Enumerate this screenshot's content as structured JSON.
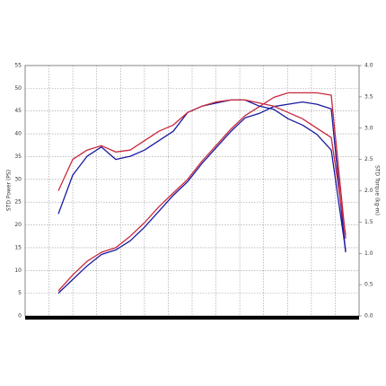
{
  "chart_data": {
    "type": "line",
    "y_label": "STD Power (PS)",
    "y2_label": "STD Torque (kg-m)",
    "categories": [
      null,
      null,
      null,
      null,
      null,
      null,
      null,
      null,
      null,
      null,
      null,
      null,
      null,
      null,
      null,
      null,
      null,
      null,
      null,
      null,
      null
    ],
    "ylim": [
      0,
      55
    ],
    "yticks": [
      0,
      5,
      10,
      15,
      20,
      25,
      30,
      35,
      40,
      45,
      50,
      55
    ],
    "y2lim": [
      0,
      4
    ],
    "y2ticks": [
      {
        "value": 0,
        "label": "0.0"
      },
      0.5,
      {
        "value": 1,
        "label": "1.0"
      },
      1.5,
      {
        "value": 2,
        "label": "2.0"
      },
      2.5,
      {
        "value": 3,
        "label": "3.0"
      },
      3.5,
      {
        "value": 4,
        "label": "4.0"
      }
    ],
    "grid": true,
    "series": [
      {
        "color": "#1a1aa0",
        "values": [
          5,
          8,
          11,
          13.5,
          14.5,
          16.5,
          19.5,
          23,
          26.5,
          29.5,
          33.5,
          37,
          40.5,
          43.5,
          44.5,
          46,
          46.5,
          47,
          46.5,
          45.5,
          14
        ]
      },
      {
        "color": "#c8283c",
        "values": [
          5.5,
          9,
          12,
          14,
          15,
          17.5,
          20.5,
          24,
          27,
          30,
          34,
          37.5,
          41,
          44,
          46,
          48,
          49,
          49,
          49,
          48.5,
          17
        ]
      },
      {
        "color": "#1a1aa0",
        "axis": "y2",
        "values": [
          1.63,
          2.25,
          2.55,
          2.7,
          2.5,
          2.55,
          2.65,
          2.8,
          2.95,
          3.25,
          3.35,
          3.4,
          3.45,
          3.45,
          3.35,
          3.3,
          3.15,
          3.05,
          2.9,
          2.65,
          1.05
        ]
      },
      {
        "color": "#c8283c",
        "axis": "y2",
        "values": [
          2.0,
          2.5,
          2.65,
          2.72,
          2.62,
          2.65,
          2.8,
          2.95,
          3.05,
          3.25,
          3.35,
          3.42,
          3.45,
          3.45,
          3.4,
          3.35,
          3.25,
          3.15,
          3.0,
          2.85,
          1.3
        ]
      }
    ]
  }
}
